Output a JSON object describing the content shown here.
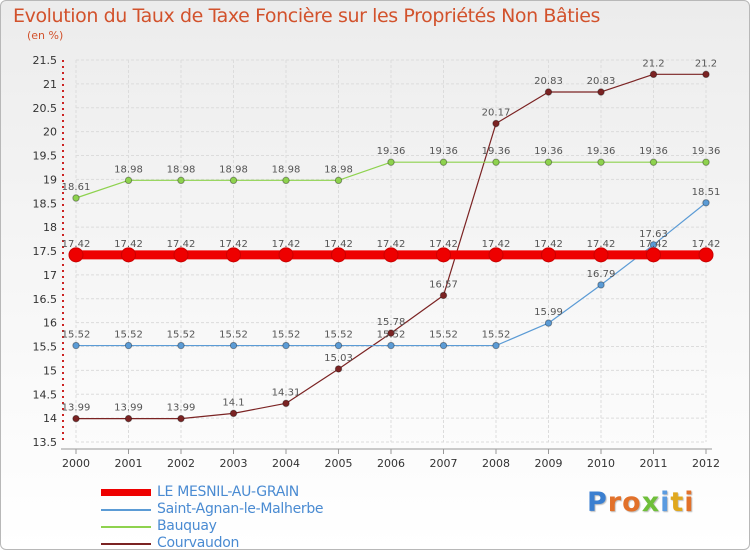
{
  "brand": {
    "logo_text": "Proxiti"
  },
  "chart_data": {
    "type": "line",
    "title": "Evolution du Taux de Taxe Foncière sur les Propriétés Non Bâties",
    "ylabel": "(en %)",
    "xlabel": "",
    "x": [
      "2000",
      "2001",
      "2002",
      "2003",
      "2004",
      "2005",
      "2006",
      "2007",
      "2008",
      "2009",
      "2010",
      "2011",
      "2012"
    ],
    "ylim": [
      13.5,
      21.5
    ],
    "yticks": [
      13.5,
      14,
      14.5,
      15,
      15.5,
      16,
      16.5,
      17,
      17.5,
      18,
      18.5,
      19,
      19.5,
      20,
      20.5,
      21,
      21.5
    ],
    "legend_position": "bottom-left",
    "series": [
      {
        "name": "LE MESNIL-AU-GRAIN",
        "color": "#ee0000",
        "values": [
          17.42,
          17.42,
          17.42,
          17.42,
          17.42,
          17.42,
          17.42,
          17.42,
          17.42,
          17.42,
          17.42,
          17.42,
          17.42
        ],
        "labels": [
          "17.42",
          "17.42",
          "17.42",
          "17.42",
          "17.42",
          "17.42",
          "17.42",
          "17.42",
          "17.42",
          "17.42",
          "17.42",
          "17.42",
          "17.42"
        ]
      },
      {
        "name": "Saint-Agnan-le-Malherbe",
        "color": "#5b9bd5",
        "values": [
          15.52,
          15.52,
          15.52,
          15.52,
          15.52,
          15.52,
          15.52,
          15.52,
          15.52,
          15.99,
          16.79,
          17.63,
          18.51
        ],
        "labels": [
          "15.52",
          "15.52",
          "15.52",
          "15.52",
          "15.52",
          "15.52",
          "15.52",
          "15.52",
          "15.52",
          "15.99",
          "16.79",
          "17.63",
          "18.51"
        ]
      },
      {
        "name": "Bauquay",
        "color": "#8ed24e",
        "values": [
          18.61,
          18.98,
          18.98,
          18.98,
          18.98,
          18.98,
          19.36,
          19.36,
          19.36,
          19.36,
          19.36,
          19.36,
          19.36
        ],
        "labels": [
          "18.61",
          "18.98",
          "18.98",
          "18.98",
          "18.98",
          "18.98",
          "19.36",
          "19.36",
          "19.36",
          "19.36",
          "19.36",
          "19.36",
          "19.36"
        ]
      },
      {
        "name": "Courvaudon",
        "color": "#7b2323",
        "values": [
          13.99,
          13.99,
          13.99,
          14.1,
          14.31,
          15.03,
          15.78,
          16.57,
          20.17,
          20.83,
          20.83,
          21.2,
          21.2
        ],
        "labels": [
          "13.99",
          "13.99",
          "13.99",
          "14.1",
          "14.31",
          "15.03",
          "15.78",
          "16.57",
          "20.17",
          "20.83",
          "20.83",
          "21.2",
          "21.2"
        ]
      }
    ]
  }
}
